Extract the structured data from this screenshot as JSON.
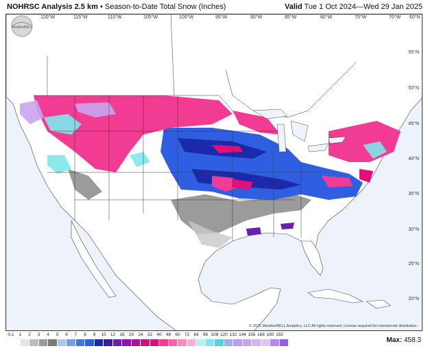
{
  "header": {
    "title_main": "NOHRSC Analysis 2.5 km",
    "title_sub": "Season-to-Date Total Snow (Inches)",
    "valid_label": "Valid",
    "valid_range": "Tue 1 Oct 2024—Wed 29 Jan 2025"
  },
  "map": {
    "lon_labels": [
      "120°W",
      "115°W",
      "110°W",
      "105°W",
      "100°W",
      "95°W",
      "90°W",
      "85°W",
      "80°W",
      "75°W",
      "70°W",
      "60°N"
    ],
    "lat_labels": [
      "55°N",
      "50°N",
      "45°N",
      "40°N",
      "35°N",
      "30°N",
      "25°N",
      "20°N"
    ],
    "copyright": "© 2025 WeatherBELL Analytics, LLC All rights reserved. License required for commercial distribution.",
    "logo_text": "WeatherBELL",
    "colors": {
      "land": "#ffffff",
      "ocean": "#eef3fb",
      "gray": "#8a8a8a",
      "blue": "#2f5fe0",
      "navy": "#1b2aa8",
      "purple": "#6a1fb0",
      "pink": "#f23b93",
      "magenta": "#e0107a",
      "cyan": "#7fe7ec",
      "lavender": "#c9a6f0"
    }
  },
  "legend": {
    "labels": [
      "0.1",
      "1",
      "2",
      "3",
      "4",
      "5",
      "6",
      "7",
      "8",
      "9",
      "10",
      "12",
      "16",
      "20",
      "24",
      "32",
      "40",
      "48",
      "60",
      "72",
      "84",
      "96",
      "108",
      "120",
      "132",
      "144",
      "156",
      "168",
      "180",
      "192"
    ],
    "colors": [
      "#ffffff",
      "#e4e4e4",
      "#bdbdbd",
      "#9a9a9a",
      "#7a7a7a",
      "#a8c8f4",
      "#6fa0ee",
      "#3f73e6",
      "#2f5fe0",
      "#1b2aa8",
      "#3a1da0",
      "#6a1fb0",
      "#8a16a8",
      "#b0109a",
      "#d00e88",
      "#e0107a",
      "#f23b93",
      "#f564a8",
      "#f78cbf",
      "#f6b1d3",
      "#b6f0f2",
      "#7fe7ec",
      "#4fd6e0",
      "#9bb0f0",
      "#b3a0ee",
      "#c6a3f0",
      "#d6b3f4",
      "#e2c3f6",
      "#b987e8",
      "#9a5fe0"
    ],
    "max_label": "Max:",
    "max_value": "458.3"
  }
}
